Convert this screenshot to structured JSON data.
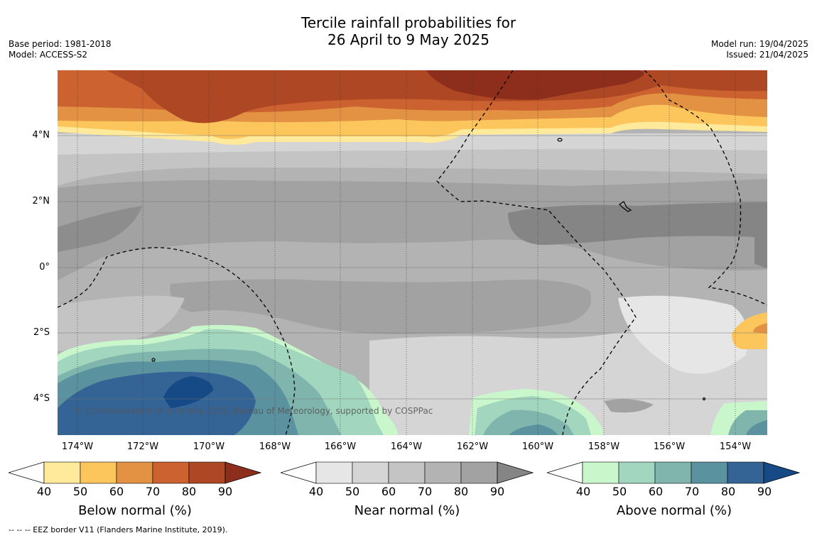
{
  "header": {
    "title_line1": "Tercile rainfall probabilities for",
    "title_line2": "26 April to 9 May 2025",
    "base_period": "Base period: 1981-2018",
    "model": "Model: ACCESS-S2",
    "model_run": "Model run: 19/04/2025",
    "issued": "Issued: 21/04/2025"
  },
  "map": {
    "lat_labels": [
      "4°N",
      "2°N",
      "0°",
      "2°S",
      "4°S"
    ],
    "lon_labels": [
      "174°W",
      "172°W",
      "170°W",
      "168°W",
      "166°W",
      "164°W",
      "162°W",
      "160°W",
      "158°W",
      "156°W",
      "154°W"
    ],
    "copyright": "© Commonwealth of Australia 2025, Bureau of Meteorology, supported by COSPPac"
  },
  "legends": [
    {
      "title": "Below normal (%)",
      "ticks": [
        "40",
        "50",
        "60",
        "70",
        "80",
        "90"
      ],
      "colors": [
        "#ffffff",
        "#ffe99a",
        "#fdc65c",
        "#e39244",
        "#cb6230",
        "#ae4724",
        "#8d2e1c"
      ]
    },
    {
      "title": "Near normal (%)",
      "ticks": [
        "40",
        "50",
        "60",
        "70",
        "80",
        "90"
      ],
      "colors": [
        "#ffffff",
        "#e6e6e6",
        "#d5d5d5",
        "#c4c4c4",
        "#b3b3b3",
        "#a2a2a2",
        "#858585"
      ]
    },
    {
      "title": "Above normal (%)",
      "ticks": [
        "40",
        "50",
        "60",
        "70",
        "80",
        "90"
      ],
      "colors": [
        "#ffffff",
        "#c9f7cb",
        "#a3d6bf",
        "#80b5ad",
        "#5b92a0",
        "#346496",
        "#164a86"
      ]
    }
  ],
  "footer": {
    "eez_note": "--  --  -- EEZ border V11 (Flanders Marine Institute, 2019)."
  }
}
